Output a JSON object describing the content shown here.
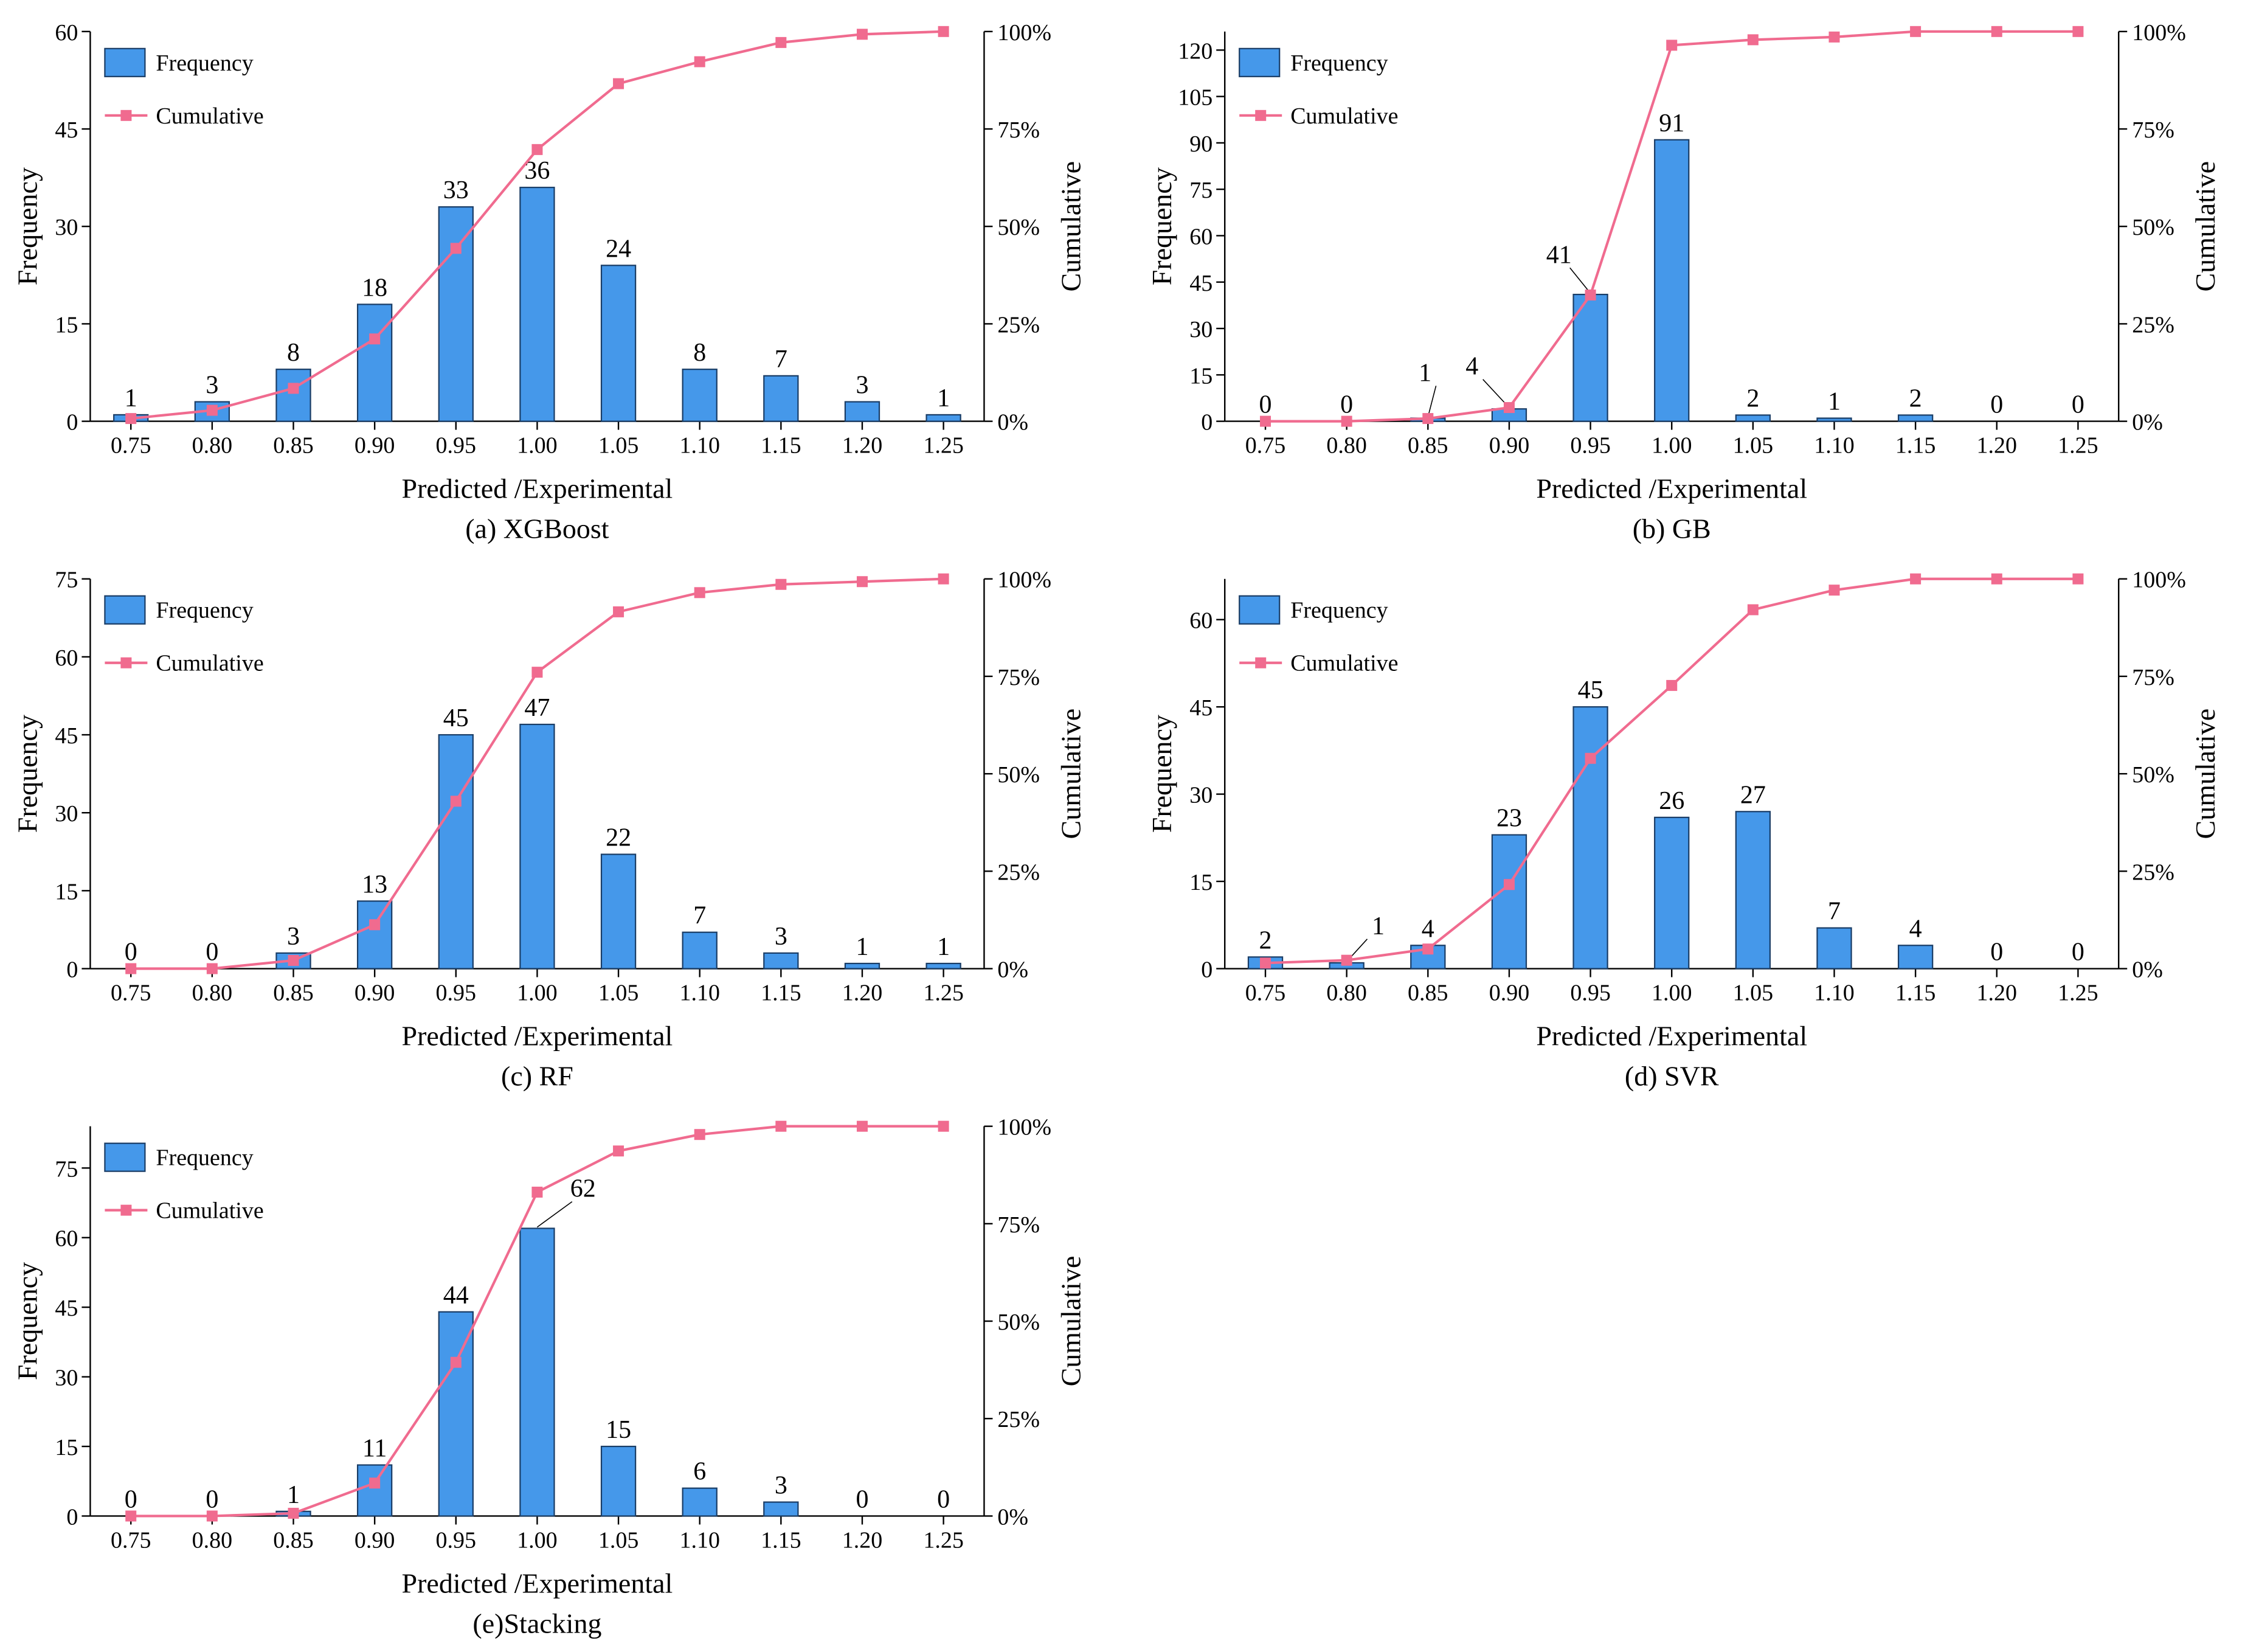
{
  "figure": {
    "background": "#ffffff"
  },
  "legend": {
    "frequency_label": "Frequency",
    "cumulative_label": "Cumulative"
  },
  "colors": {
    "bar_fill": "#4598ea",
    "bar_edge": "#1a3d66",
    "line": "#f06b8f",
    "axis": "#000000"
  },
  "chart_data": [
    {
      "id": "a",
      "type": "bar",
      "caption": "(a) XGBoost",
      "xlabel": "Predicted /Experimental",
      "ylabel": "Frequency",
      "y2label": "Cumulative",
      "categories": [
        "0.75",
        "0.80",
        "0.85",
        "0.90",
        "0.95",
        "1.00",
        "1.05",
        "1.10",
        "1.15",
        "1.20",
        "1.25"
      ],
      "values": [
        1,
        3,
        8,
        18,
        33,
        36,
        24,
        8,
        7,
        3,
        1
      ],
      "ylim": [
        0,
        60
      ],
      "yticks": [
        0,
        15,
        30,
        45,
        60
      ],
      "y2ticks": [
        "0%",
        "25%",
        "50%",
        "75%",
        "100%"
      ],
      "series": [
        {
          "name": "Frequency"
        },
        {
          "name": "Cumulative"
        }
      ],
      "legend_position": "top-left"
    },
    {
      "id": "b",
      "type": "bar",
      "caption": "(b) GB",
      "xlabel": "Predicted /Experimental",
      "ylabel": "Frequency",
      "y2label": "Cumulative",
      "categories": [
        "0.75",
        "0.80",
        "0.85",
        "0.90",
        "0.95",
        "1.00",
        "1.05",
        "1.10",
        "1.15",
        "1.20",
        "1.25"
      ],
      "values": [
        0,
        0,
        1,
        4,
        41,
        91,
        2,
        1,
        2,
        0,
        0
      ],
      "ylim": [
        0,
        126
      ],
      "yticks": [
        0,
        15,
        30,
        45,
        60,
        75,
        90,
        105,
        120
      ],
      "y2ticks": [
        "0%",
        "25%",
        "50%",
        "75%",
        "100%"
      ],
      "series": [
        {
          "name": "Frequency"
        },
        {
          "name": "Cumulative"
        }
      ],
      "legend_position": "top-left"
    },
    {
      "id": "c",
      "type": "bar",
      "caption": "(c) RF",
      "xlabel": "Predicted /Experimental",
      "ylabel": "Frequency",
      "y2label": "Cumulative",
      "categories": [
        "0.75",
        "0.80",
        "0.85",
        "0.90",
        "0.95",
        "1.00",
        "1.05",
        "1.10",
        "1.15",
        "1.20",
        "1.25"
      ],
      "values": [
        0,
        0,
        3,
        13,
        45,
        47,
        22,
        7,
        3,
        1,
        1
      ],
      "ylim": [
        0,
        75
      ],
      "yticks": [
        0,
        15,
        30,
        45,
        60,
        75
      ],
      "y2ticks": [
        "0%",
        "25%",
        "50%",
        "75%",
        "100%"
      ],
      "series": [
        {
          "name": "Frequency"
        },
        {
          "name": "Cumulative"
        }
      ],
      "legend_position": "top-left"
    },
    {
      "id": "d",
      "type": "bar",
      "caption": "(d) SVR",
      "xlabel": "Predicted /Experimental",
      "ylabel": "Frequency",
      "y2label": "Cumulative",
      "categories": [
        "0.75",
        "0.80",
        "0.85",
        "0.90",
        "0.95",
        "1.00",
        "1.05",
        "1.10",
        "1.15",
        "1.20",
        "1.25"
      ],
      "values": [
        2,
        1,
        4,
        23,
        45,
        26,
        27,
        7,
        4,
        0,
        0
      ],
      "ylim": [
        0,
        67
      ],
      "yticks": [
        0,
        15,
        30,
        45,
        60
      ],
      "y2ticks": [
        "0%",
        "25%",
        "50%",
        "75%",
        "100%"
      ],
      "series": [
        {
          "name": "Frequency"
        },
        {
          "name": "Cumulative"
        }
      ],
      "legend_position": "top-left"
    },
    {
      "id": "e",
      "type": "bar",
      "caption": "(e)Stacking",
      "xlabel": "Predicted /Experimental",
      "ylabel": "Frequency",
      "y2label": "Cumulative",
      "categories": [
        "0.75",
        "0.80",
        "0.85",
        "0.90",
        "0.95",
        "1.00",
        "1.05",
        "1.10",
        "1.15",
        "1.20",
        "1.25"
      ],
      "values": [
        0,
        0,
        1,
        11,
        44,
        62,
        15,
        6,
        3,
        0,
        0
      ],
      "ylim": [
        0,
        84
      ],
      "yticks": [
        0,
        15,
        30,
        45,
        60,
        75
      ],
      "y2ticks": [
        "0%",
        "25%",
        "50%",
        "75%",
        "100%"
      ],
      "series": [
        {
          "name": "Frequency"
        },
        {
          "name": "Cumulative"
        }
      ],
      "legend_position": "top-left"
    }
  ]
}
